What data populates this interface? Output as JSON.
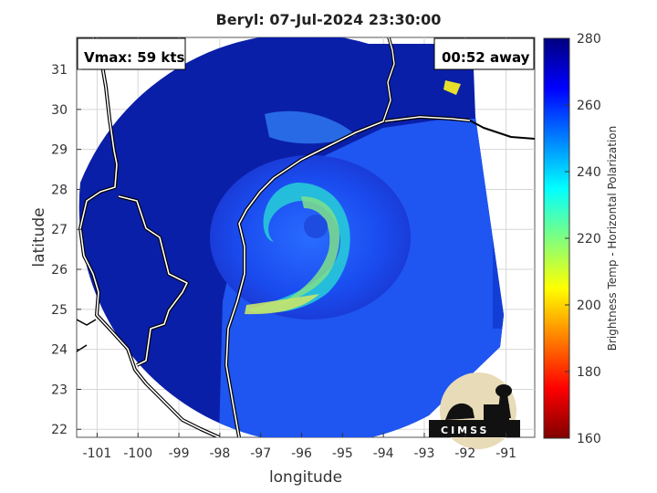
{
  "title": "Beryl: 07-Jul-2024 23:30:00",
  "vmax_text": "Vmax: 59 kts",
  "away_text": "00:52 away",
  "logo_text": "CIMSS",
  "chart_data": {
    "type": "heatmap",
    "xlabel": "longitude",
    "ylabel": "latitude",
    "xlim": [
      -101.5,
      -90.3
    ],
    "ylim": [
      21.8,
      31.8
    ],
    "xticks": [
      -101,
      -100,
      -99,
      -98,
      -97,
      -96,
      -95,
      -94,
      -93,
      -92,
      -91
    ],
    "yticks": [
      22,
      23,
      24,
      25,
      26,
      27,
      28,
      29,
      30,
      31
    ],
    "grid": true,
    "colorbar": {
      "label": "Brightness Temp - Horizontal Polarization",
      "range": [
        160,
        280
      ],
      "ticks": [
        160,
        180,
        200,
        220,
        240,
        260,
        280
      ],
      "colormap": "jet"
    },
    "storm_center": {
      "lon": -95.6,
      "lat": 26.9
    }
  }
}
